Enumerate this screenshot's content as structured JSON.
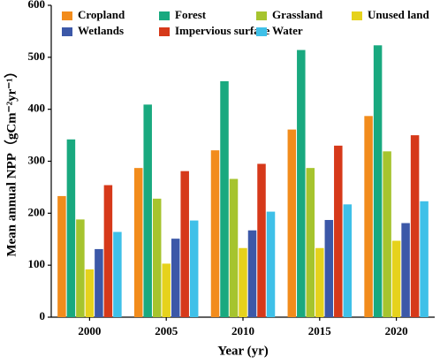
{
  "chart_data": {
    "type": "bar",
    "xlabel": "Year (yr)",
    "ylabel": "Mean annual NPP（gCm⁻²yr⁻¹）",
    "categories": [
      "2000",
      "2005",
      "2010",
      "2015",
      "2020"
    ],
    "series": [
      {
        "name": "Cropland",
        "color": "#f28c1c",
        "values": [
          233,
          287,
          321,
          361,
          387
        ]
      },
      {
        "name": "Forest",
        "color": "#19a97f",
        "values": [
          342,
          409,
          454,
          514,
          523
        ]
      },
      {
        "name": "Grassland",
        "color": "#a6c42e",
        "values": [
          188,
          228,
          266,
          287,
          319
        ]
      },
      {
        "name": "Unused land",
        "color": "#e6d21c",
        "values": [
          92,
          103,
          133,
          133,
          147
        ]
      },
      {
        "name": "Wetlands",
        "color": "#3c58a8",
        "values": [
          131,
          151,
          167,
          187,
          181
        ]
      },
      {
        "name": "Impervious surface",
        "color": "#d6391a",
        "values": [
          254,
          281,
          295,
          330,
          350
        ]
      },
      {
        "name": "Water",
        "color": "#3fc0e8",
        "values": [
          164,
          186,
          203,
          217,
          223
        ]
      }
    ],
    "ylim": [
      0,
      600
    ],
    "yticks": [
      0,
      100,
      200,
      300,
      400,
      500,
      600
    ]
  }
}
